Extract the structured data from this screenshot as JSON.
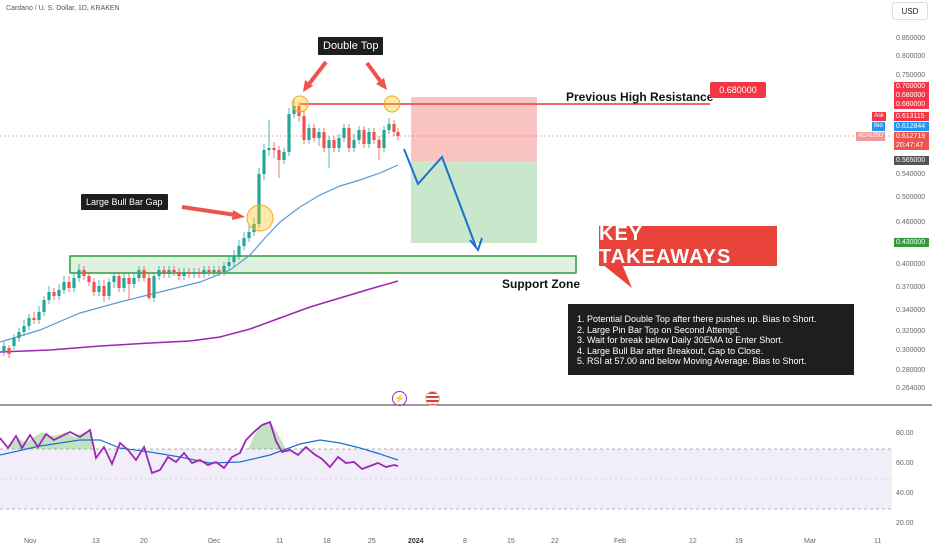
{
  "header": {
    "symbol": "Cardano / U. S. Dollar, 1D, KRAKEN"
  },
  "currency": "USD",
  "y_ticks": [
    "0.850000",
    "0.800000",
    "0.750000",
    "0.540000",
    "0.500000",
    "0.460000",
    "0.400000",
    "0.370000",
    "0.340000",
    "0.320000",
    "0.300000",
    "0.280000",
    "0.264000"
  ],
  "price_tags": {
    "p700": "0.700000",
    "p680a": "0.680000",
    "p680b": "0.680000",
    "ask_label": "Ask",
    "ask_value": "0.613115",
    "bid_label": "Bid",
    "bid_value": "0.612844",
    "pair_label": "ADAUSD",
    "last_value": "0.612719",
    "countdown": "20:47:47",
    "stop": "0.565000",
    "target": "0.430000"
  },
  "rsi_ticks": [
    "80.00",
    "60.00",
    "40.00",
    "20.00"
  ],
  "x_ticks": [
    "Nov",
    "13",
    "20",
    "Dec",
    "11",
    "18",
    "25",
    "2024",
    "8",
    "15",
    "22",
    "Feb",
    "12",
    "19",
    "Mar",
    "11"
  ],
  "annotations": {
    "double_top": "Double Top",
    "resistance": "Previous High Resistance",
    "resistance_value": "0.680000",
    "bull_gap": "Large Bull Bar Gap",
    "support": "Support Zone",
    "key_takeaways": "KEY TAKEAWAYS"
  },
  "takeaways": [
    "1. Potential Double Top after there pushes up. Bias to Short.",
    "2. Large Pin Bar Top on Second Attempt.",
    "3. Wait for break below Daily 30EMA to Enter Short.",
    "4. Large Bull Bar after Breakout, Gap to Close.",
    "5. RSI at 57.00 and below Moving Average. Bias to Short."
  ],
  "colors": {
    "bull": "#26a69a",
    "bear": "#ef5350",
    "ema": "#5b9bd5",
    "sma": "#9c27b0",
    "accent_red": "#e8433a"
  }
}
